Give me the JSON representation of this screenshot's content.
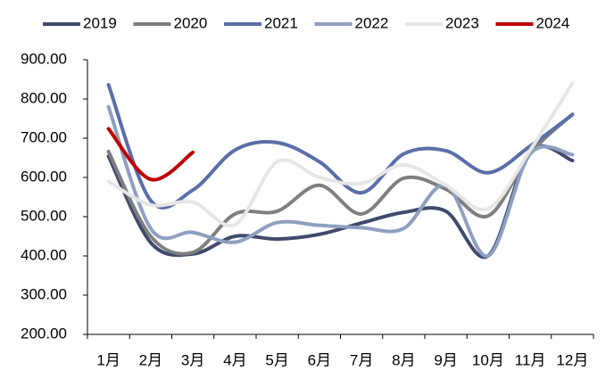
{
  "chart_data": {
    "type": "line",
    "categories": [
      "1月",
      "2月",
      "3月",
      "4月",
      "5月",
      "6月",
      "7月",
      "8月",
      "9月",
      "10月",
      "11月",
      "12月"
    ],
    "series": [
      {
        "name": "2019",
        "color": "#404a6c",
        "values": [
          654,
          434,
          405,
          450,
          443,
          455,
          484,
          511,
          514,
          400,
          666,
          643
        ]
      },
      {
        "name": "2020",
        "color": "#7f7f7f",
        "values": [
          666,
          450,
          409,
          507,
          514,
          580,
          507,
          598,
          570,
          502,
          661,
          761
        ]
      },
      {
        "name": "2021",
        "color": "#5a6ea8",
        "values": [
          836,
          541,
          568,
          670,
          689,
          640,
          561,
          660,
          668,
          612,
          680,
          760
        ]
      },
      {
        "name": "2022",
        "color": "#8e9fc0",
        "values": [
          780,
          470,
          460,
          435,
          485,
          478,
          472,
          470,
          580,
          400,
          660,
          658
        ]
      },
      {
        "name": "2023",
        "color": "#e6e6e6",
        "values": [
          590,
          530,
          537,
          480,
          640,
          600,
          585,
          632,
          580,
          520,
          670,
          840
        ]
      },
      {
        "name": "2024",
        "color": "#c00000",
        "values": [
          724,
          595,
          664,
          null,
          null,
          null,
          null,
          null,
          null,
          null,
          null,
          null
        ]
      }
    ],
    "ylim": [
      200,
      900
    ],
    "yticks": [
      {
        "value": 200,
        "label": "200.00"
      },
      {
        "value": 300,
        "label": "300.00"
      },
      {
        "value": 400,
        "label": "400.00"
      },
      {
        "value": 500,
        "label": "500.00"
      },
      {
        "value": 600,
        "label": "600.00"
      },
      {
        "value": 700,
        "label": "700.00"
      },
      {
        "value": 800,
        "label": "800.00"
      },
      {
        "value": 900,
        "label": "900.00"
      }
    ],
    "grid": false
  }
}
